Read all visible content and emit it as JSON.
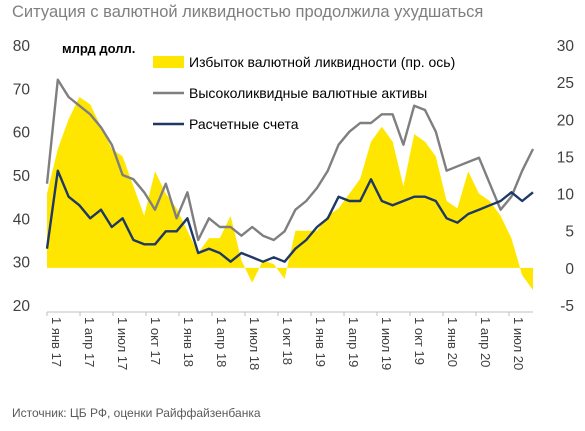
{
  "title": "Ситуация с валютной ликвидностью продолжила ухудшаться",
  "source": "Источник: ЦБ РФ, оценки Райффайзенбанка",
  "chart_data": {
    "type": "area+line",
    "unit_label": "млрд долл.",
    "left_axis": {
      "min": 20,
      "max": 80,
      "ticks": [
        20,
        30,
        40,
        50,
        60,
        70,
        80
      ]
    },
    "right_axis": {
      "min": -5,
      "max": 30,
      "ticks": [
        -5,
        0,
        5,
        10,
        15,
        20,
        25,
        30
      ]
    },
    "x_tick_labels": [
      "1 янв 17",
      "1 апр 17",
      "1 июл 17",
      "1 окт 17",
      "1 янв 18",
      "1 апр 18",
      "1 июл 18",
      "1 окт 18",
      "1 янв 19",
      "1 апр 19",
      "1 июл 19",
      "1 окт 19",
      "1 янв 20",
      "1 апр 20",
      "1 июл 20"
    ],
    "legend_position": "top-right",
    "series": [
      {
        "name": "Избыток валютной ликвидности (пр. ось)",
        "kind": "area",
        "axis": "right",
        "color": "#ffe600",
        "values": [
          10,
          16,
          20,
          23,
          22,
          19,
          16,
          15,
          11,
          7,
          13,
          10,
          8,
          5,
          2,
          4,
          4,
          7,
          1,
          -2,
          1,
          0.5,
          -1.5,
          5,
          5,
          5,
          7,
          8,
          10,
          12,
          17,
          19,
          17,
          11,
          18,
          17,
          15,
          9,
          8,
          13,
          10,
          9,
          7,
          4,
          -1,
          -3
        ]
      },
      {
        "name": "Высоколиквидные валютные активы",
        "kind": "line",
        "axis": "left",
        "color": "#7f7f7f",
        "values": [
          48,
          72,
          68,
          66,
          64,
          61,
          57,
          50,
          49,
          46,
          42,
          48,
          40,
          46,
          35,
          40,
          38,
          38,
          36,
          38,
          36,
          35,
          37,
          42,
          44,
          47,
          51,
          57,
          60,
          62,
          62,
          64,
          64,
          57,
          66,
          65,
          60,
          51,
          52,
          53,
          54,
          48,
          42,
          45,
          51,
          56
        ]
      },
      {
        "name": "Расчетные счета",
        "kind": "line",
        "axis": "left",
        "color": "#1f3864",
        "values": [
          33,
          51,
          45,
          43,
          40,
          42,
          38,
          40,
          35,
          34,
          34,
          37,
          37,
          40,
          32,
          33,
          32,
          30,
          32,
          31,
          30,
          31,
          30,
          33,
          35,
          38,
          40,
          45,
          44,
          44,
          49,
          44,
          43,
          44,
          45,
          45,
          44,
          40,
          39,
          41,
          42,
          43,
          44,
          46,
          44,
          46
        ]
      }
    ]
  }
}
